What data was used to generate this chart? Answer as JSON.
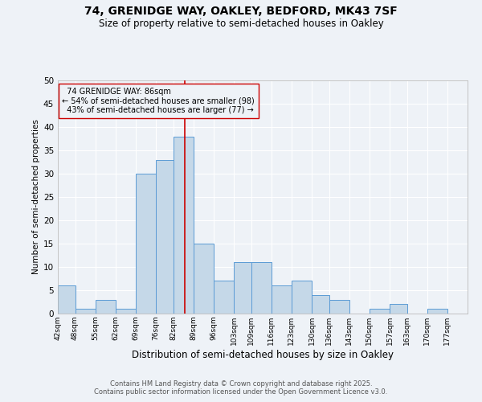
{
  "title": "74, GRENIDGE WAY, OAKLEY, BEDFORD, MK43 7SF",
  "subtitle": "Size of property relative to semi-detached houses in Oakley",
  "xlabel": "Distribution of semi-detached houses by size in Oakley",
  "ylabel": "Number of semi-detached properties",
  "footer_line1": "Contains HM Land Registry data © Crown copyright and database right 2025.",
  "footer_line2": "Contains public sector information licensed under the Open Government Licence v3.0.",
  "bin_labels": [
    "42sqm",
    "48sqm",
    "55sqm",
    "62sqm",
    "69sqm",
    "76sqm",
    "82sqm",
    "89sqm",
    "96sqm",
    "103sqm",
    "109sqm",
    "116sqm",
    "123sqm",
    "130sqm",
    "136sqm",
    "143sqm",
    "150sqm",
    "157sqm",
    "163sqm",
    "170sqm",
    "177sqm"
  ],
  "bin_edges": [
    42,
    48,
    55,
    62,
    69,
    76,
    82,
    89,
    96,
    103,
    109,
    116,
    123,
    130,
    136,
    143,
    150,
    157,
    163,
    170,
    177,
    184
  ],
  "bar_heights": [
    6,
    1,
    3,
    1,
    30,
    33,
    38,
    15,
    7,
    11,
    11,
    6,
    7,
    4,
    3,
    0,
    1,
    2,
    0,
    1,
    0
  ],
  "bar_color": "#c5d8e8",
  "bar_edge_color": "#5b9bd5",
  "property_size": 86,
  "property_label": "74 GRENIDGE WAY: 86sqm",
  "pct_smaller": 54,
  "count_smaller": 98,
  "pct_larger": 43,
  "count_larger": 77,
  "vline_color": "#cc0000",
  "annotation_box_edge_color": "#cc0000",
  "ylim": [
    0,
    50
  ],
  "yticks": [
    0,
    5,
    10,
    15,
    20,
    25,
    30,
    35,
    40,
    45,
    50
  ],
  "bg_color": "#eef2f7",
  "grid_color": "#ffffff"
}
